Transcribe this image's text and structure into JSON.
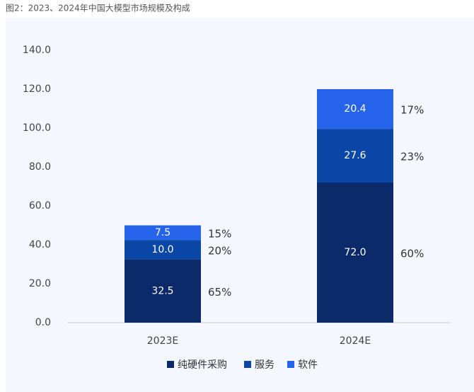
{
  "chart_data": {
    "type": "stacked-bar",
    "title": "图2：2023、2024年中国大模型市场规模及构成",
    "categories": [
      "2023E",
      "2024E"
    ],
    "series": [
      {
        "name": "纯硬件采购",
        "color": "#0c2a6a",
        "values": [
          32.5,
          72.0
        ],
        "value_labels": [
          "32.5",
          "72.0"
        ],
        "share_labels": [
          "65%",
          "60%"
        ]
      },
      {
        "name": "服务",
        "color": "#0a47a6",
        "values": [
          10.0,
          27.6
        ],
        "value_labels": [
          "10.0",
          "27.6"
        ],
        "share_labels": [
          "20%",
          "23%"
        ]
      },
      {
        "name": "软件",
        "color": "#2563eb",
        "values": [
          7.5,
          20.4
        ],
        "value_labels": [
          "7.5",
          "20.4"
        ],
        "share_labels": [
          "15%",
          "17%"
        ]
      }
    ],
    "ylim": [
      0,
      140
    ],
    "yticks": [
      {
        "value": 0,
        "label": "0.0"
      },
      {
        "value": 20,
        "label": "20.0"
      },
      {
        "value": 40,
        "label": "40.0"
      },
      {
        "value": 60,
        "label": "60.0"
      },
      {
        "value": 80,
        "label": "80.0"
      },
      {
        "value": 100,
        "label": "100.0"
      },
      {
        "value": 120,
        "label": "120.0"
      },
      {
        "value": 140,
        "label": "140.0"
      }
    ],
    "grid": false
  }
}
